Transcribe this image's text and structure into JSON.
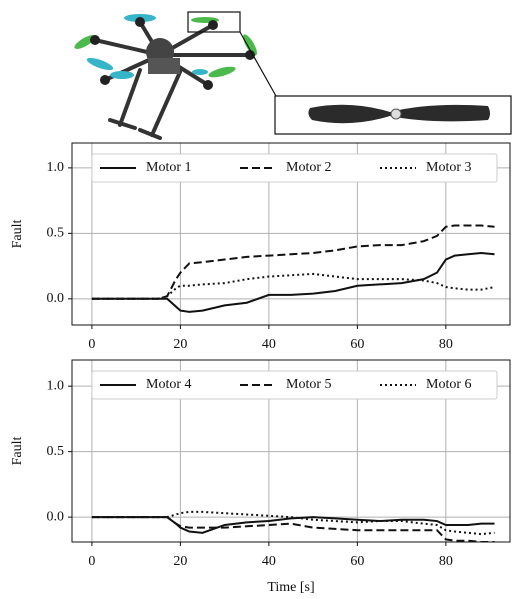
{
  "chart_data": [
    {
      "type": "line",
      "ylabel": "Fault",
      "x": [
        0,
        5,
        10,
        15,
        17,
        19,
        20,
        22,
        25,
        30,
        35,
        40,
        45,
        50,
        55,
        60,
        65,
        70,
        75,
        78,
        80,
        82,
        85,
        88,
        91
      ],
      "xlim": [
        -4.5,
        94.5
      ],
      "xticks": [
        0,
        20,
        40,
        60,
        80
      ],
      "ylim": [
        -0.2,
        1.19
      ],
      "yticks": [
        {
          "value": 0,
          "label": "0.0"
        },
        {
          "value": 0.5,
          "label": "0.5"
        },
        {
          "value": 1,
          "label": "1.0"
        }
      ],
      "grid": true,
      "legend": "top",
      "series": [
        {
          "name": "Motor 1",
          "color": "#111111",
          "dash": "solid",
          "values": [
            0,
            0,
            0,
            0,
            0,
            -0.06,
            -0.09,
            -0.1,
            -0.09,
            -0.05,
            -0.03,
            0.03,
            0.03,
            0.04,
            0.06,
            0.1,
            0.11,
            0.12,
            0.15,
            0.2,
            0.3,
            0.33,
            0.34,
            0.35,
            0.34
          ]
        },
        {
          "name": "Motor 2",
          "color": "#111111",
          "dash": "dashed",
          "values": [
            0,
            0,
            0,
            0,
            0.02,
            0.15,
            0.2,
            0.27,
            0.28,
            0.3,
            0.32,
            0.33,
            0.34,
            0.35,
            0.37,
            0.4,
            0.41,
            0.41,
            0.44,
            0.48,
            0.55,
            0.56,
            0.56,
            0.56,
            0.55
          ]
        },
        {
          "name": "Motor 3",
          "color": "#111111",
          "dash": "dotted",
          "values": [
            0,
            0,
            0,
            0,
            0.02,
            0.08,
            0.1,
            0.1,
            0.11,
            0.12,
            0.15,
            0.17,
            0.18,
            0.19,
            0.17,
            0.15,
            0.15,
            0.15,
            0.14,
            0.12,
            0.09,
            0.08,
            0.07,
            0.07,
            0.09
          ]
        }
      ]
    },
    {
      "type": "line",
      "ylabel": "Fault",
      "xlabel": "Time [s]",
      "x": [
        0,
        5,
        10,
        15,
        17,
        19,
        20,
        22,
        25,
        30,
        35,
        40,
        45,
        50,
        55,
        60,
        65,
        70,
        75,
        78,
        80,
        82,
        85,
        88,
        91
      ],
      "xlim": [
        -4.5,
        94.5
      ],
      "xticks": [
        0,
        20,
        40,
        60,
        80
      ],
      "ylim": [
        -0.19,
        1.2
      ],
      "yticks": [
        {
          "value": 0,
          "label": "0.0"
        },
        {
          "value": 0.5,
          "label": "0.5"
        },
        {
          "value": 1,
          "label": "1.0"
        }
      ],
      "grid": true,
      "legend": "top",
      "series": [
        {
          "name": "Motor 4",
          "color": "#111111",
          "dash": "solid",
          "values": [
            0,
            0,
            0,
            0,
            0,
            -0.05,
            -0.08,
            -0.11,
            -0.12,
            -0.06,
            -0.04,
            -0.03,
            -0.01,
            0,
            -0.01,
            -0.02,
            -0.03,
            -0.02,
            -0.02,
            -0.03,
            -0.06,
            -0.06,
            -0.06,
            -0.05,
            -0.05
          ]
        },
        {
          "name": "Motor 5",
          "color": "#111111",
          "dash": "dashed",
          "values": [
            0,
            0,
            0,
            0,
            0,
            -0.05,
            -0.07,
            -0.08,
            -0.08,
            -0.08,
            -0.07,
            -0.06,
            -0.05,
            -0.08,
            -0.09,
            -0.1,
            -0.1,
            -0.1,
            -0.1,
            -0.1,
            -0.17,
            -0.18,
            -0.18,
            -0.19,
            -0.19
          ]
        },
        {
          "name": "Motor 6",
          "color": "#111111",
          "dash": "dotted",
          "values": [
            0,
            0,
            0,
            0,
            0,
            0.02,
            0.03,
            0.04,
            0.04,
            0.03,
            0.02,
            0.01,
            0,
            -0.02,
            -0.03,
            -0.04,
            -0.03,
            -0.03,
            -0.05,
            -0.06,
            -0.1,
            -0.11,
            -0.12,
            -0.13,
            -0.12
          ]
        }
      ]
    }
  ]
}
